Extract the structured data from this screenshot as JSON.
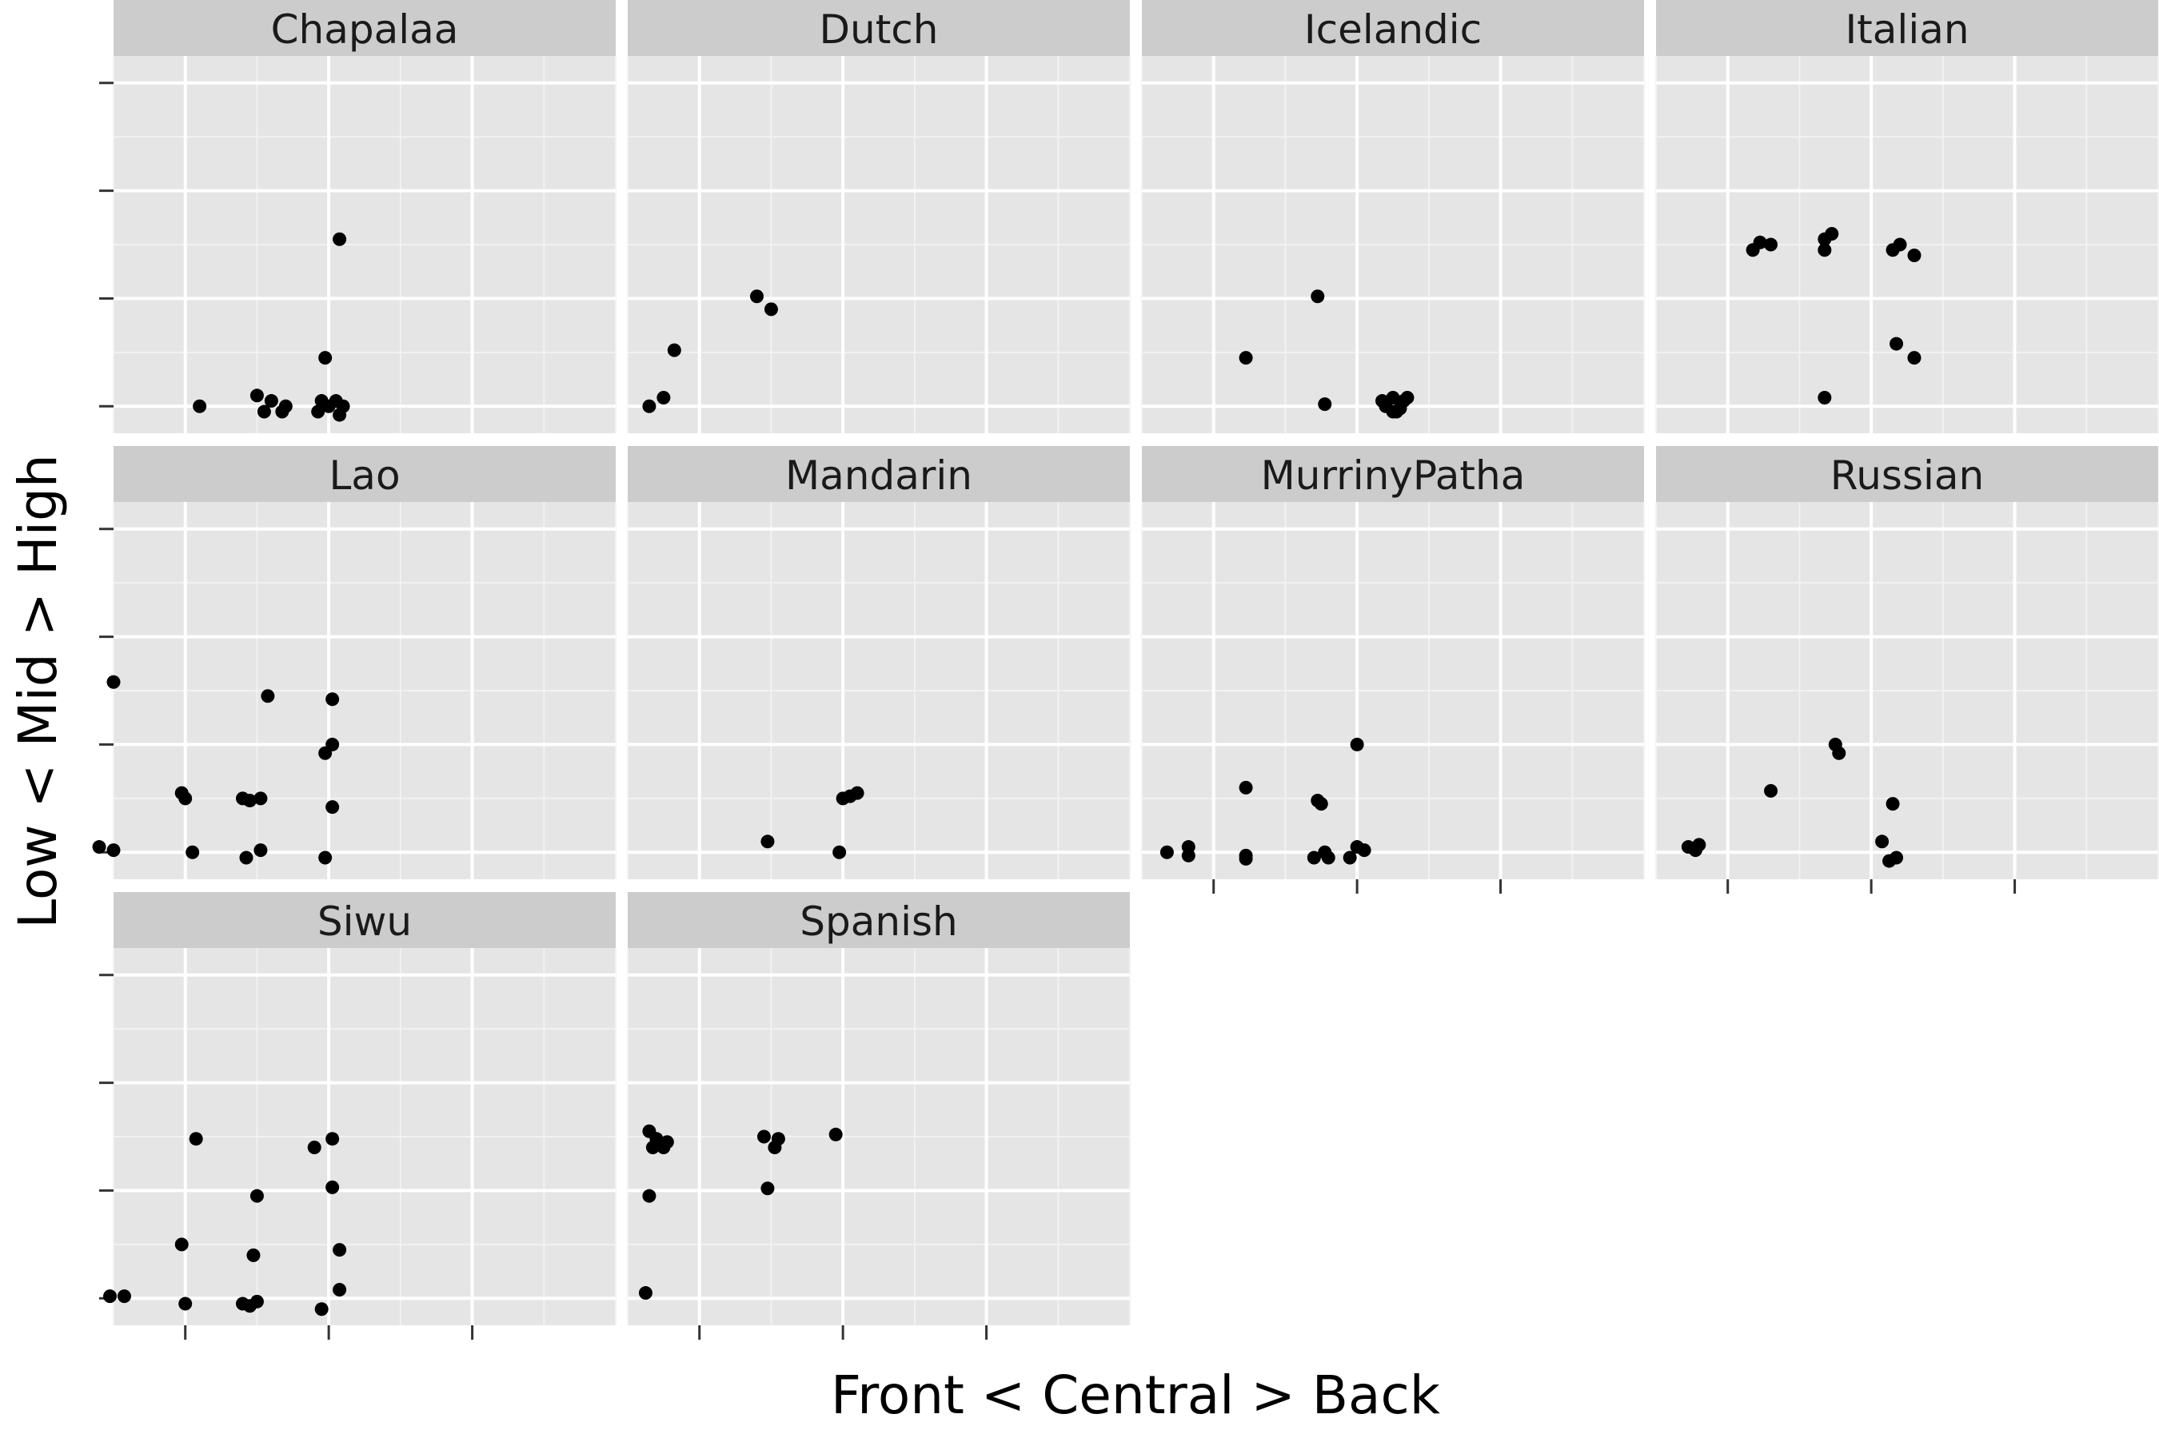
{
  "chart_data": {
    "type": "scatter",
    "facet_by": "language",
    "facet_layout": {
      "columns": 4,
      "rows": 3
    },
    "xlabel": "Front < Central > Back",
    "ylabel": "Low < Mid > High",
    "xlim": [
      0,
      7
    ],
    "ylim": [
      0.75,
      4.25
    ],
    "x_ticks": [
      1,
      3,
      5
    ],
    "y_ticks": [
      1,
      2,
      3,
      4
    ],
    "grid": true,
    "point_color": "#000000",
    "panel_background": "#e5e5e5",
    "strip_background": "#cccccc",
    "panels": [
      {
        "name": "Chapalaa",
        "points": [
          {
            "x": 1.2,
            "y": 1.0
          },
          {
            "x": 2.0,
            "y": 1.1
          },
          {
            "x": 2.2,
            "y": 1.05
          },
          {
            "x": 2.4,
            "y": 1.0
          },
          {
            "x": 2.1,
            "y": 0.95
          },
          {
            "x": 2.35,
            "y": 0.95
          },
          {
            "x": 2.9,
            "y": 1.05
          },
          {
            "x": 3.0,
            "y": 1.0
          },
          {
            "x": 3.1,
            "y": 1.05
          },
          {
            "x": 2.85,
            "y": 0.95
          },
          {
            "x": 3.15,
            "y": 0.92
          },
          {
            "x": 3.2,
            "y": 1.0
          },
          {
            "x": 2.95,
            "y": 1.45
          },
          {
            "x": 3.15,
            "y": 2.55
          }
        ]
      },
      {
        "name": "Dutch",
        "points": [
          {
            "x": 0.3,
            "y": 1.0
          },
          {
            "x": 0.5,
            "y": 1.08
          },
          {
            "x": 0.65,
            "y": 1.52
          },
          {
            "x": 1.8,
            "y": 2.02
          },
          {
            "x": 2.0,
            "y": 1.9
          }
        ]
      },
      {
        "name": "Icelandic",
        "points": [
          {
            "x": 1.45,
            "y": 1.45
          },
          {
            "x": 2.45,
            "y": 2.02
          },
          {
            "x": 2.55,
            "y": 1.02
          },
          {
            "x": 3.35,
            "y": 1.05
          },
          {
            "x": 3.4,
            "y": 1.0
          },
          {
            "x": 3.5,
            "y": 1.08
          },
          {
            "x": 3.55,
            "y": 0.95
          },
          {
            "x": 3.65,
            "y": 1.05
          },
          {
            "x": 3.6,
            "y": 0.98
          },
          {
            "x": 3.7,
            "y": 1.08
          },
          {
            "x": 3.5,
            "y": 0.95
          }
        ]
      },
      {
        "name": "Italian",
        "points": [
          {
            "x": 1.35,
            "y": 2.45
          },
          {
            "x": 1.45,
            "y": 2.52
          },
          {
            "x": 1.6,
            "y": 2.5
          },
          {
            "x": 2.35,
            "y": 2.55
          },
          {
            "x": 2.35,
            "y": 2.45
          },
          {
            "x": 2.45,
            "y": 2.6
          },
          {
            "x": 3.3,
            "y": 2.45
          },
          {
            "x": 3.4,
            "y": 2.5
          },
          {
            "x": 3.6,
            "y": 2.4
          },
          {
            "x": 3.35,
            "y": 1.58
          },
          {
            "x": 3.6,
            "y": 1.45
          },
          {
            "x": 2.35,
            "y": 1.08
          }
        ]
      },
      {
        "name": "Lao",
        "points": [
          {
            "x": -0.2,
            "y": 1.05
          },
          {
            "x": 0.0,
            "y": 1.02
          },
          {
            "x": 0.0,
            "y": 2.58
          },
          {
            "x": 0.95,
            "y": 1.55
          },
          {
            "x": 1.0,
            "y": 1.5
          },
          {
            "x": 1.1,
            "y": 1.0
          },
          {
            "x": 1.8,
            "y": 1.5
          },
          {
            "x": 1.9,
            "y": 1.48
          },
          {
            "x": 2.05,
            "y": 1.5
          },
          {
            "x": 1.85,
            "y": 0.95
          },
          {
            "x": 2.05,
            "y": 1.02
          },
          {
            "x": 2.15,
            "y": 2.45
          },
          {
            "x": 2.95,
            "y": 1.92
          },
          {
            "x": 3.05,
            "y": 2.0
          },
          {
            "x": 3.05,
            "y": 2.42
          },
          {
            "x": 3.05,
            "y": 1.42
          },
          {
            "x": 2.95,
            "y": 0.95
          }
        ]
      },
      {
        "name": "Mandarin",
        "points": [
          {
            "x": 1.95,
            "y": 1.1
          },
          {
            "x": 2.95,
            "y": 1.0
          },
          {
            "x": 3.0,
            "y": 1.5
          },
          {
            "x": 3.1,
            "y": 1.52
          },
          {
            "x": 3.2,
            "y": 1.55
          }
        ]
      },
      {
        "name": "MurrinyPatha",
        "points": [
          {
            "x": 0.35,
            "y": 1.0
          },
          {
            "x": 0.65,
            "y": 1.05
          },
          {
            "x": 0.65,
            "y": 0.97
          },
          {
            "x": 1.45,
            "y": 1.6
          },
          {
            "x": 1.45,
            "y": 0.97
          },
          {
            "x": 1.45,
            "y": 0.94
          },
          {
            "x": 2.45,
            "y": 1.48
          },
          {
            "x": 2.5,
            "y": 1.45
          },
          {
            "x": 2.4,
            "y": 0.95
          },
          {
            "x": 2.55,
            "y": 1.0
          },
          {
            "x": 2.6,
            "y": 0.95
          },
          {
            "x": 3.0,
            "y": 2.0
          },
          {
            "x": 3.0,
            "y": 1.05
          },
          {
            "x": 3.1,
            "y": 1.02
          },
          {
            "x": 2.9,
            "y": 0.95
          }
        ]
      },
      {
        "name": "Russian",
        "points": [
          {
            "x": 0.45,
            "y": 1.05
          },
          {
            "x": 0.55,
            "y": 1.02
          },
          {
            "x": 0.6,
            "y": 1.07
          },
          {
            "x": 1.6,
            "y": 1.57
          },
          {
            "x": 2.5,
            "y": 2.0
          },
          {
            "x": 2.55,
            "y": 1.92
          },
          {
            "x": 3.15,
            "y": 1.1
          },
          {
            "x": 3.25,
            "y": 0.92
          },
          {
            "x": 3.35,
            "y": 0.95
          },
          {
            "x": 3.3,
            "y": 1.45
          }
        ]
      },
      {
        "name": "Siwu",
        "points": [
          {
            "x": -0.05,
            "y": 1.02
          },
          {
            "x": 0.15,
            "y": 1.02
          },
          {
            "x": 0.95,
            "y": 1.5
          },
          {
            "x": 1.0,
            "y": 0.95
          },
          {
            "x": 1.15,
            "y": 2.48
          },
          {
            "x": 1.8,
            "y": 0.95
          },
          {
            "x": 1.9,
            "y": 0.93
          },
          {
            "x": 2.0,
            "y": 0.97
          },
          {
            "x": 1.95,
            "y": 1.4
          },
          {
            "x": 2.0,
            "y": 1.95
          },
          {
            "x": 2.8,
            "y": 2.4
          },
          {
            "x": 3.05,
            "y": 2.48
          },
          {
            "x": 3.05,
            "y": 2.03
          },
          {
            "x": 3.15,
            "y": 1.45
          },
          {
            "x": 3.15,
            "y": 1.08
          },
          {
            "x": 2.9,
            "y": 0.9
          }
        ]
      },
      {
        "name": "Spanish",
        "points": [
          {
            "x": 0.25,
            "y": 1.05
          },
          {
            "x": 0.3,
            "y": 1.95
          },
          {
            "x": 0.3,
            "y": 2.55
          },
          {
            "x": 0.35,
            "y": 2.4
          },
          {
            "x": 0.4,
            "y": 2.48
          },
          {
            "x": 0.5,
            "y": 2.4
          },
          {
            "x": 0.55,
            "y": 2.45
          },
          {
            "x": 1.9,
            "y": 2.5
          },
          {
            "x": 1.95,
            "y": 2.02
          },
          {
            "x": 2.05,
            "y": 2.4
          },
          {
            "x": 2.1,
            "y": 2.48
          },
          {
            "x": 2.9,
            "y": 2.52
          }
        ]
      }
    ]
  }
}
